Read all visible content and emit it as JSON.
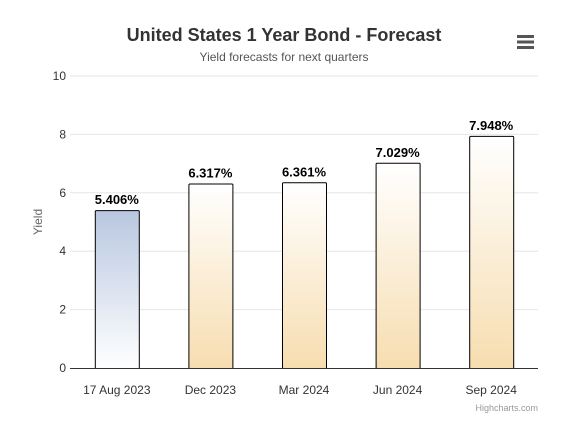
{
  "chart_data": {
    "type": "bar",
    "title": "United States 1 Year Bond - Forecast",
    "subtitle": "Yield forecasts for next quarters",
    "xlabel": "",
    "ylabel": "Yield",
    "categories": [
      "17 Aug 2023",
      "Dec 2023",
      "Mar 2024",
      "Jun 2024",
      "Sep 2024"
    ],
    "values": [
      5.406,
      6.317,
      6.361,
      7.029,
      7.948
    ],
    "data_labels": [
      "5.406%",
      "6.317%",
      "6.361%",
      "7.029%",
      "7.948%"
    ],
    "y_ticks": [
      "0",
      "2",
      "4",
      "6",
      "8",
      "10"
    ],
    "ylim": [
      0,
      10
    ],
    "grid": true,
    "legend": "none",
    "colors": {
      "current_bar_top": "#b8c7e0",
      "current_bar_bottom": "#ffffff",
      "forecast_bar_top": "#ffffff",
      "forecast_bar_bottom": "#f7ddb0",
      "bar_border": "#000000",
      "gridline": "#e6e6e6",
      "axis_line": "#333333"
    }
  },
  "credits": "Highcharts.com",
  "menu_icon": "hamburger-menu-icon"
}
